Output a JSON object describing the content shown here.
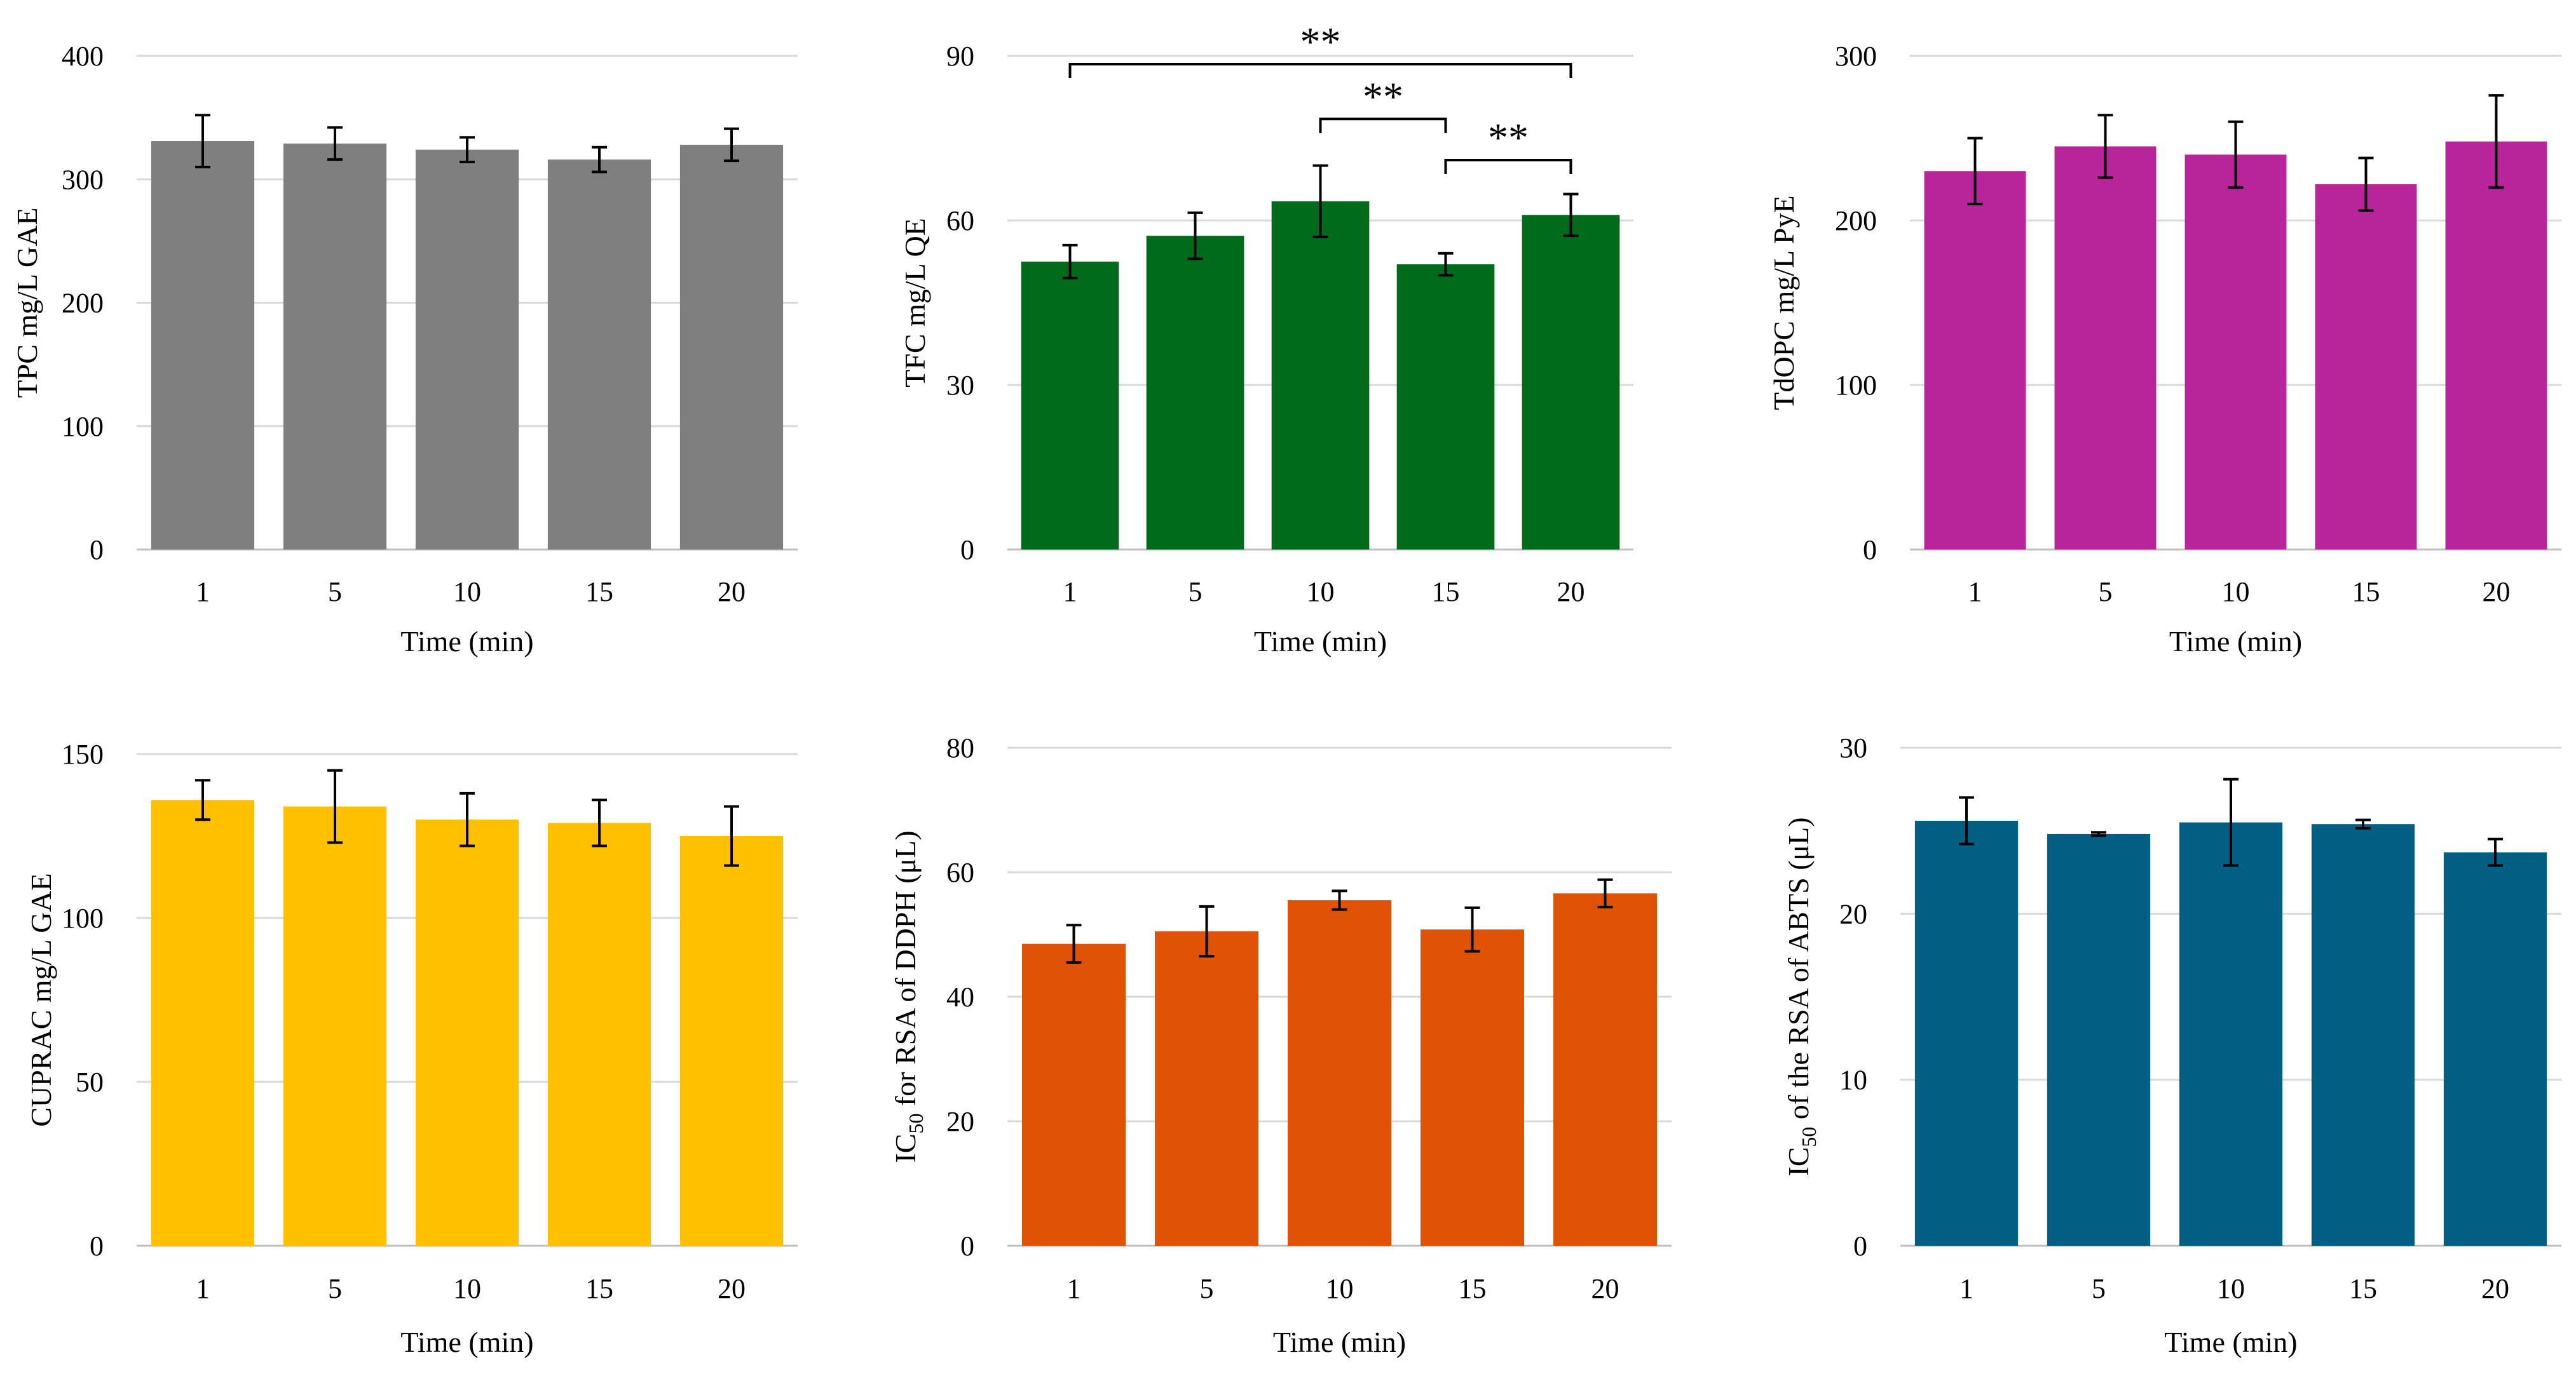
{
  "figure_title": "",
  "chart_data": [
    {
      "type": "bar",
      "panel": "top-left",
      "title": "",
      "categories": [
        "1",
        "5",
        "10",
        "15",
        "20"
      ],
      "values": [
        331,
        329,
        324,
        316,
        328
      ],
      "errors": [
        21,
        13,
        10,
        10,
        13
      ],
      "color": "#7f7f7f",
      "xlabel": "Time (min)",
      "ylabel": {
        "pre": "TPC mg/L GAE",
        "sub": "",
        "post": ""
      },
      "ylim": [
        0,
        400
      ],
      "yticks": [
        0,
        100,
        200,
        300,
        400
      ],
      "grid": true,
      "significance": []
    },
    {
      "type": "bar",
      "panel": "top-center",
      "title": "",
      "categories": [
        "1",
        "5",
        "10",
        "15",
        "20"
      ],
      "values": [
        52.5,
        57.2,
        63.5,
        52.0,
        61.0
      ],
      "errors": [
        3.0,
        4.2,
        6.5,
        2.0,
        3.8
      ],
      "color": "#006b1a",
      "xlabel": "Time (min)",
      "ylabel": {
        "pre": "TFC mg/L QE",
        "sub": "",
        "post": ""
      },
      "ylim": [
        0,
        90
      ],
      "yticks": [
        0,
        30,
        60,
        90
      ],
      "grid": true,
      "significance": [
        {
          "from": 0,
          "to": 4,
          "label": "**",
          "y": 88.5
        },
        {
          "from": 2,
          "to": 3,
          "label": "**",
          "y": 78.5
        },
        {
          "from": 3,
          "to": 4,
          "label": "**",
          "y": 71.0
        }
      ]
    },
    {
      "type": "bar",
      "panel": "top-right",
      "title": "",
      "categories": [
        "1",
        "5",
        "10",
        "15",
        "20"
      ],
      "values": [
        230,
        245,
        240,
        222,
        248
      ],
      "errors": [
        20,
        19,
        20,
        16,
        28
      ],
      "color": "#b8259a",
      "xlabel": "Time (min)",
      "ylabel": {
        "pre": "TdOPC mg/L PyE",
        "sub": "",
        "post": ""
      },
      "ylim": [
        0,
        300
      ],
      "yticks": [
        0,
        100,
        200,
        300
      ],
      "grid": true,
      "significance": []
    },
    {
      "type": "bar",
      "panel": "bottom-left",
      "title": "",
      "categories": [
        "1",
        "5",
        "10",
        "15",
        "20"
      ],
      "values": [
        136,
        134,
        130,
        129,
        125
      ],
      "errors": [
        6,
        11,
        8,
        7,
        9
      ],
      "color": "#ffc000",
      "xlabel": "Time (min)",
      "ylabel": {
        "pre": "CUPRAC mg/L GAE",
        "sub": "",
        "post": ""
      },
      "ylim": [
        0,
        150
      ],
      "yticks": [
        0,
        50,
        100,
        150
      ],
      "grid": true,
      "significance": []
    },
    {
      "type": "bar",
      "panel": "bottom-center",
      "title": "",
      "categories": [
        "1",
        "5",
        "10",
        "15",
        "20"
      ],
      "values": [
        48.5,
        50.5,
        55.5,
        50.8,
        56.6
      ],
      "errors": [
        3.0,
        4.0,
        1.5,
        3.5,
        2.2
      ],
      "color": "#e05206",
      "xlabel": "Time (min)",
      "ylabel": {
        "pre": "IC",
        "sub": "50",
        "post": " for RSA of DDPH  (μL)"
      },
      "ylim": [
        0,
        80
      ],
      "yticks": [
        0,
        20,
        40,
        60,
        80
      ],
      "grid": true,
      "significance": []
    },
    {
      "type": "bar",
      "panel": "bottom-right",
      "title": "",
      "categories": [
        "1",
        "5",
        "10",
        "15",
        "20"
      ],
      "values": [
        25.6,
        24.8,
        25.5,
        25.4,
        23.7
      ],
      "errors": [
        1.4,
        0.1,
        2.6,
        0.25,
        0.8
      ],
      "color": "#005f83",
      "xlabel": "Time (min)",
      "ylabel": {
        "pre": "IC",
        "sub": "50",
        "post": " of the RSA of ABTS (μL)"
      },
      "ylim": [
        0,
        30
      ],
      "yticks": [
        0,
        10,
        20,
        30
      ],
      "grid": true,
      "significance": []
    }
  ]
}
